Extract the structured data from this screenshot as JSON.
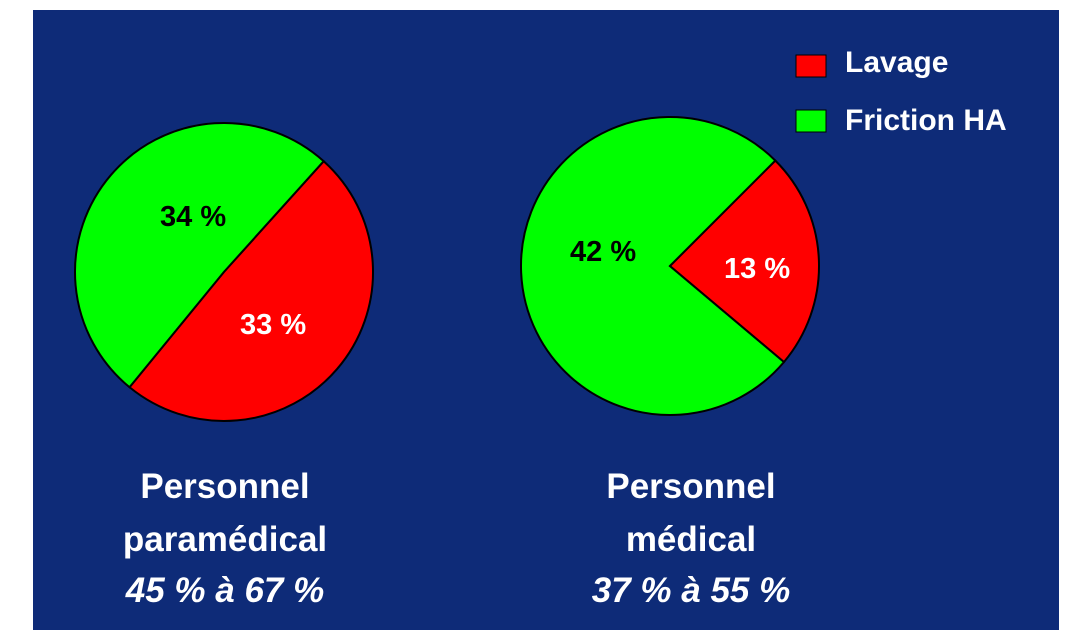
{
  "chart_data": [
    {
      "type": "pie",
      "series": [
        {
          "name": "Lavage",
          "value": 33,
          "label": "33 %"
        },
        {
          "name": "Friction HA",
          "value": 34,
          "label": "34 %"
        }
      ],
      "caption_lines": [
        "Personnel",
        "paramédical"
      ],
      "range_label": "45 % à 67 %"
    },
    {
      "type": "pie",
      "series": [
        {
          "name": "Lavage",
          "value": 13,
          "label": "13 %"
        },
        {
          "name": "Friction HA",
          "value": 42,
          "label": "42 %"
        }
      ],
      "caption_lines": [
        "Personnel",
        "médical"
      ],
      "range_label": "37 % à 55 %"
    }
  ],
  "legend": [
    {
      "name": "Lavage",
      "color": "#ff0000"
    },
    {
      "name": "Friction HA",
      "color": "#00ff00"
    }
  ],
  "colors": {
    "background": "#0e2b78",
    "lavage": "#ff0000",
    "friction": "#00ff00",
    "text": "#ffffff"
  }
}
